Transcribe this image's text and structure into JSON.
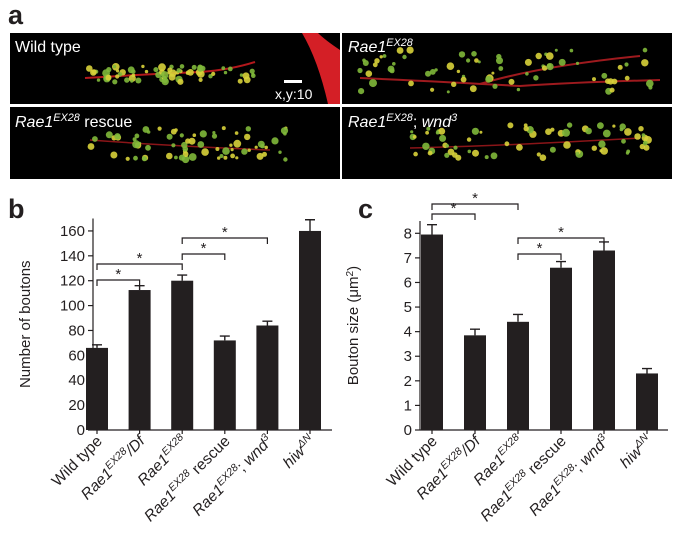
{
  "panel_a": {
    "label": "a",
    "scale_bar": "x,y:10",
    "images": [
      {
        "label": [
          {
            "t": "Wild type"
          }
        ]
      },
      {
        "label": [
          {
            "t": "Rae1",
            "i": true
          },
          {
            "t": "EX28",
            "i": true,
            "sup": true
          }
        ]
      },
      {
        "label": [
          {
            "t": "Rae1",
            "i": true
          },
          {
            "t": "EX28",
            "i": true,
            "sup": true
          },
          {
            "t": " rescue"
          }
        ]
      },
      {
        "label": [
          {
            "t": "Rae1",
            "i": true
          },
          {
            "t": "EX28",
            "i": true,
            "sup": true
          },
          {
            "t": "; "
          },
          {
            "t": "wnd",
            "i": true
          },
          {
            "t": "3",
            "i": true,
            "sup": true
          }
        ]
      }
    ]
  },
  "chart_data": [
    {
      "type": "bar",
      "label": "b",
      "ylabel": [
        {
          "t": "Number of boutons"
        }
      ],
      "color": "#231f20",
      "categories": [
        [
          {
            "t": "Wild type"
          }
        ],
        [
          {
            "t": "Rae1",
            "i": true
          },
          {
            "t": "EX28",
            "i": true,
            "sup": true
          },
          {
            "t": "/Df",
            "i": true
          }
        ],
        [
          {
            "t": "Rae1",
            "i": true
          },
          {
            "t": "EX28",
            "i": true,
            "sup": true
          }
        ],
        [
          {
            "t": "Rae1",
            "i": true
          },
          {
            "t": "EX28",
            "i": true,
            "sup": true
          },
          {
            "t": " rescue"
          }
        ],
        [
          {
            "t": "Rae1",
            "i": true
          },
          {
            "t": "EX28",
            "i": true,
            "sup": true
          },
          {
            "t": "; "
          },
          {
            "t": "wnd",
            "i": true
          },
          {
            "t": "3",
            "i": true,
            "sup": true
          }
        ],
        [
          {
            "t": "hiw",
            "i": true
          },
          {
            "t": "ΔN",
            "i": true,
            "sup": true
          }
        ]
      ],
      "values": [
        66,
        112.5,
        120,
        72,
        84,
        160
      ],
      "errors": [
        2.5,
        3.5,
        4.5,
        3.5,
        3.5,
        9
      ],
      "ylim": [
        0,
        170
      ],
      "yticks": [
        0,
        20,
        40,
        60,
        80,
        100,
        120,
        140,
        160
      ],
      "significance": [
        {
          "from": 0,
          "to": 1,
          "label": "*"
        },
        {
          "from": 0,
          "to": 2,
          "label": "*"
        },
        {
          "from": 2,
          "to": 3,
          "label": "*"
        },
        {
          "from": 2,
          "to": 4,
          "label": "*"
        }
      ]
    },
    {
      "type": "bar",
      "label": "c",
      "ylabel": [
        {
          "t": "Bouton size (μm"
        },
        {
          "t": "2",
          "sup": true
        },
        {
          "t": ")"
        }
      ],
      "color": "#231f20",
      "categories": [
        [
          {
            "t": "Wild type"
          }
        ],
        [
          {
            "t": "Rae1",
            "i": true
          },
          {
            "t": "EX28",
            "i": true,
            "sup": true
          },
          {
            "t": "/Df",
            "i": true
          }
        ],
        [
          {
            "t": "Rae1",
            "i": true
          },
          {
            "t": "EX28",
            "i": true,
            "sup": true
          }
        ],
        [
          {
            "t": "Rae1",
            "i": true
          },
          {
            "t": "EX28",
            "i": true,
            "sup": true
          },
          {
            "t": " rescue"
          }
        ],
        [
          {
            "t": "Rae1",
            "i": true
          },
          {
            "t": "EX28",
            "i": true,
            "sup": true
          },
          {
            "t": "; "
          },
          {
            "t": "wnd",
            "i": true
          },
          {
            "t": "3",
            "i": true,
            "sup": true
          }
        ],
        [
          {
            "t": "hiw",
            "i": true
          },
          {
            "t": "ΔN",
            "i": true,
            "sup": true
          }
        ]
      ],
      "values": [
        7.95,
        3.85,
        4.4,
        6.6,
        7.3,
        2.3
      ],
      "errors": [
        0.4,
        0.25,
        0.3,
        0.25,
        0.35,
        0.2
      ],
      "ylim": [
        0,
        8.5
      ],
      "yticks": [
        0,
        1,
        2,
        3,
        4,
        5,
        6,
        7,
        8
      ],
      "significance": [
        {
          "from": 0,
          "to": 1,
          "label": "*"
        },
        {
          "from": 0,
          "to": 2,
          "label": "*"
        },
        {
          "from": 2,
          "to": 3,
          "label": "*"
        },
        {
          "from": 2,
          "to": 4,
          "label": "*"
        }
      ]
    }
  ]
}
